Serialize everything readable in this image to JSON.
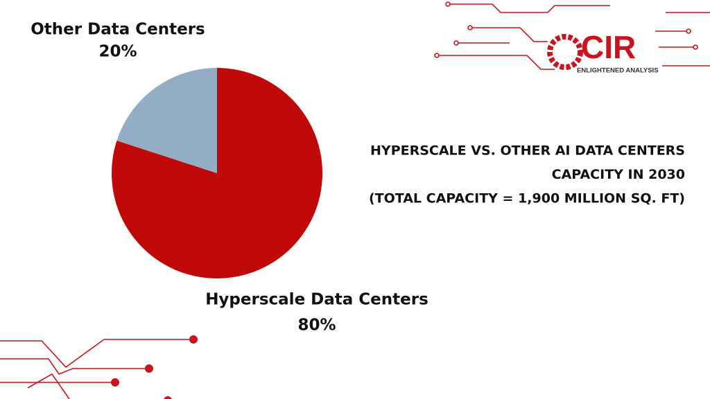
{
  "chart_data": {
    "type": "pie",
    "title": [
      "HYPERSCALE VS. OTHER AI DATA CENTERS",
      "CAPACITY IN 2030",
      "(TOTAL CAPACITY = 1,900 MILLION SQ. FT)"
    ],
    "categories": [
      "Hyperscale Data Centers",
      "Other Data Centers"
    ],
    "values": [
      80,
      20
    ],
    "value_labels": [
      "80%",
      "20%"
    ],
    "colors": [
      "#c00808",
      "#92adc4"
    ]
  },
  "logo": {
    "name": "CIR",
    "tagline": "ENLIGHTENED ANALYSIS"
  }
}
